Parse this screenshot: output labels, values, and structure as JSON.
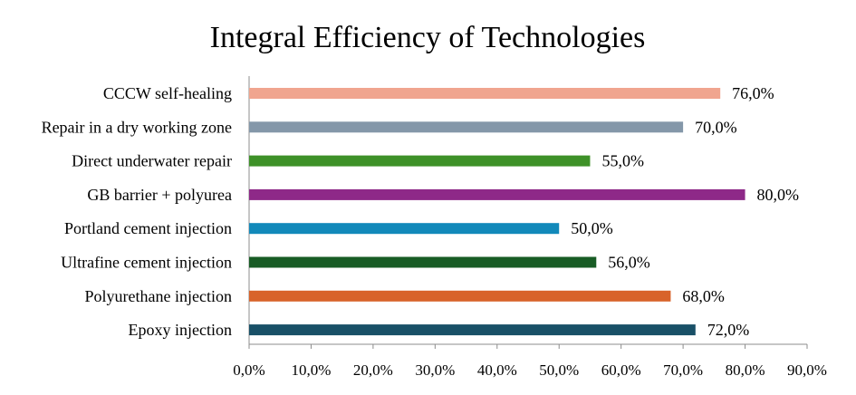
{
  "chart_data": {
    "type": "bar",
    "orientation": "horizontal",
    "title": "Integral Efficiency of Technologies",
    "xlabel": "",
    "ylabel": "",
    "categories": [
      "CCCW self-healing",
      "Repair in a dry working zone",
      "Direct underwater repair",
      "GB barrier + polyurea",
      "Portland cement injection",
      "Ultrafine cement injection",
      "Polyurethane injection",
      "Epoxy injection"
    ],
    "values": [
      76,
      70,
      55,
      80,
      50,
      56,
      68,
      72
    ],
    "value_labels": [
      "76,0%",
      "70,0%",
      "55,0%",
      "80,0%",
      "50,0%",
      "56,0%",
      "68,0%",
      "72,0%"
    ],
    "colors": [
      "#F0A58F",
      "#8497A9",
      "#3E9128",
      "#8E2988",
      "#1289BA",
      "#185C25",
      "#D8632A",
      "#195067"
    ],
    "xlim": [
      0,
      90
    ],
    "xticks": [
      0,
      10,
      20,
      30,
      40,
      50,
      60,
      70,
      80,
      90
    ],
    "xtick_labels": [
      "0,0%",
      "10,0%",
      "20,0%",
      "30,0%",
      "40,0%",
      "50,0%",
      "60,0%",
      "70,0%",
      "80,0%",
      "90,0%"
    ],
    "grid": false,
    "legend": "none"
  }
}
